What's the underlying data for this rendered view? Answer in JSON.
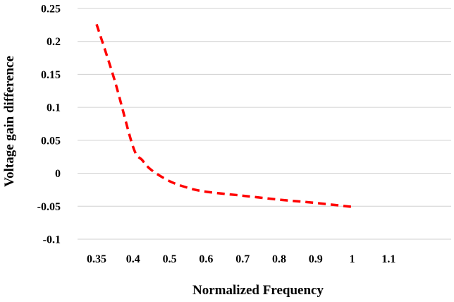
{
  "chart_data": {
    "type": "line",
    "title": "",
    "xlabel": "Normalized Frequency",
    "ylabel": "Voltage gain difference",
    "x_ticks": [
      "0.35",
      "0.4",
      "0.5",
      "0.6",
      "0.7",
      "0.8",
      "0.9",
      "1",
      "1.1"
    ],
    "y_ticks": [
      "-0.1",
      "-0.05",
      "0",
      "0.05",
      "0.1",
      "0.15",
      "0.2",
      "0.25"
    ],
    "ylim": [
      -0.1,
      0.25
    ],
    "grid": "horizontal",
    "legend": "none",
    "series": [
      {
        "color": "#ff0000",
        "line_style": "dashed",
        "x": [
          0.35,
          0.375,
          0.4,
          0.425,
          0.45,
          0.5,
          0.55,
          0.6,
          0.7,
          0.8,
          0.9,
          1.0
        ],
        "y": [
          0.226,
          0.14,
          0.04,
          0.02,
          0.005,
          -0.012,
          -0.022,
          -0.028,
          -0.034,
          -0.04,
          -0.045,
          -0.051
        ]
      }
    ]
  }
}
